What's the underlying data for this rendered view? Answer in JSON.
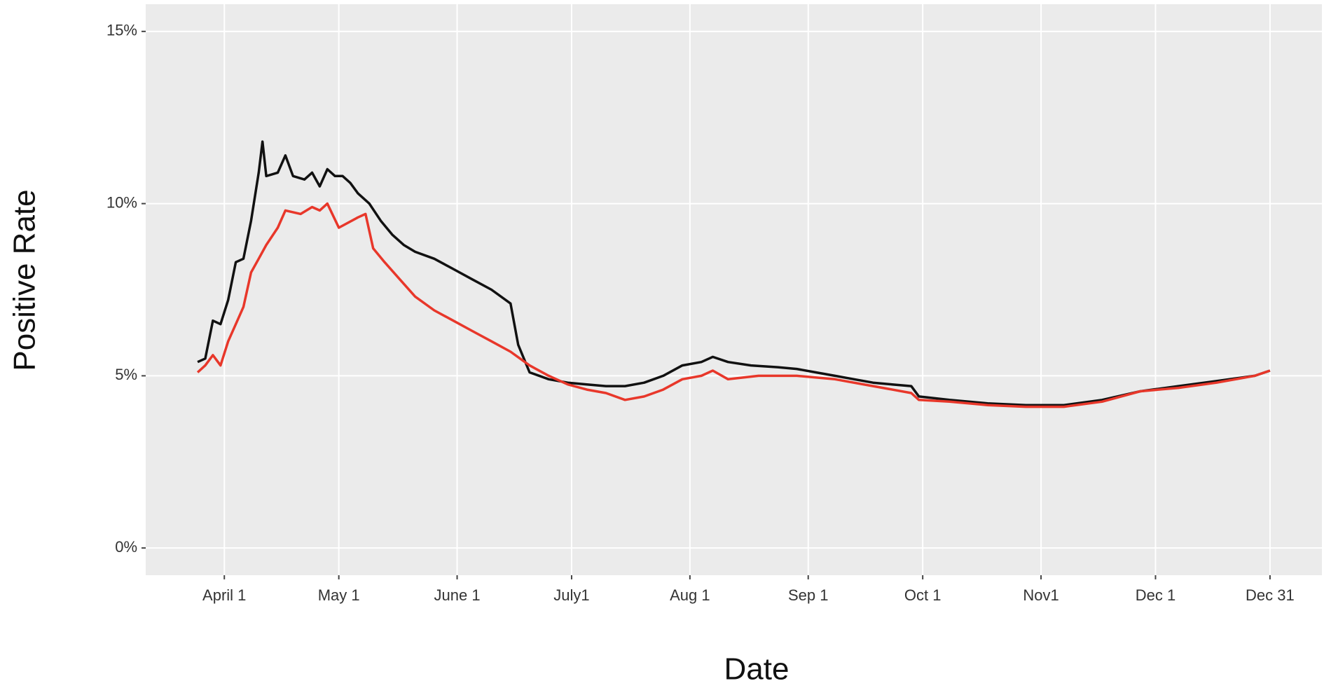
{
  "chart_data": {
    "type": "line",
    "xlabel": "Date",
    "ylabel": "Positive Rate",
    "xlim": [
      -20.6,
      287.6
    ],
    "xticks": [
      {
        "value": 0,
        "label": "April 1"
      },
      {
        "value": 30,
        "label": "May 1"
      },
      {
        "value": 61,
        "label": "June 1"
      },
      {
        "value": 91,
        "label": "July1"
      },
      {
        "value": 122,
        "label": "Aug 1"
      },
      {
        "value": 153,
        "label": "Sep 1"
      },
      {
        "value": 183,
        "label": "Oct 1"
      },
      {
        "value": 214,
        "label": "Nov1"
      },
      {
        "value": 244,
        "label": "Dec 1"
      },
      {
        "value": 274,
        "label": "Dec 31"
      }
    ],
    "ylim": [
      -0.79,
      15.79
    ],
    "yticks": [
      {
        "value": 0,
        "label": "0%"
      },
      {
        "value": 5,
        "label": "5%"
      },
      {
        "value": 10,
        "label": "10%"
      },
      {
        "value": 15,
        "label": "15%"
      }
    ],
    "grid": true,
    "series": [
      {
        "color": "#111111",
        "x": [
          -7,
          -5,
          -3,
          -1,
          1,
          3,
          5,
          7,
          9,
          10,
          11,
          14,
          16,
          18,
          21,
          23,
          25,
          27,
          29,
          31,
          33,
          35,
          38,
          41,
          44,
          47,
          50,
          55,
          60,
          65,
          70,
          75,
          77,
          80,
          85,
          90,
          95,
          100,
          105,
          110,
          115,
          120,
          125,
          128,
          132,
          138,
          145,
          150,
          155,
          160,
          165,
          170,
          175,
          180,
          182,
          190,
          200,
          210,
          220,
          230,
          240,
          250,
          260,
          270,
          274
        ],
        "values": [
          5.4,
          5.5,
          6.6,
          6.5,
          7.2,
          8.3,
          8.4,
          9.5,
          10.9,
          11.8,
          10.8,
          10.9,
          11.4,
          10.8,
          10.7,
          10.9,
          10.5,
          11.0,
          10.8,
          10.8,
          10.6,
          10.3,
          10.0,
          9.5,
          9.1,
          8.8,
          8.6,
          8.4,
          8.1,
          7.8,
          7.5,
          7.1,
          5.9,
          5.1,
          4.9,
          4.8,
          4.75,
          4.7,
          4.7,
          4.8,
          5.0,
          5.3,
          5.4,
          5.55,
          5.4,
          5.3,
          5.25,
          5.2,
          5.1,
          5.0,
          4.9,
          4.8,
          4.75,
          4.7,
          4.4,
          4.3,
          4.2,
          4.15,
          4.15,
          4.3,
          4.55,
          4.7,
          4.85,
          5.0,
          5.15
        ]
      },
      {
        "color": "#e8372a",
        "x": [
          -7,
          -5,
          -3,
          -1,
          1,
          3,
          5,
          7,
          9,
          11,
          14,
          16,
          20,
          23,
          25,
          27,
          30,
          35,
          37,
          39,
          42,
          46,
          50,
          55,
          60,
          65,
          70,
          75,
          80,
          85,
          90,
          95,
          100,
          105,
          110,
          115,
          120,
          125,
          128,
          132,
          140,
          150,
          160,
          170,
          180,
          182,
          190,
          200,
          210,
          220,
          230,
          240,
          250,
          260,
          270,
          274
        ],
        "values": [
          5.1,
          5.3,
          5.6,
          5.3,
          6.0,
          6.5,
          7.0,
          8.0,
          8.4,
          8.8,
          9.3,
          9.8,
          9.7,
          9.9,
          9.8,
          10.0,
          9.3,
          9.6,
          9.7,
          8.7,
          8.3,
          7.8,
          7.3,
          6.9,
          6.6,
          6.3,
          6.0,
          5.7,
          5.3,
          5.0,
          4.75,
          4.6,
          4.5,
          4.3,
          4.4,
          4.6,
          4.9,
          5.0,
          5.15,
          4.9,
          5.0,
          5.0,
          4.9,
          4.7,
          4.5,
          4.3,
          4.25,
          4.15,
          4.1,
          4.1,
          4.25,
          4.55,
          4.65,
          4.8,
          5.0,
          5.15
        ]
      }
    ]
  }
}
